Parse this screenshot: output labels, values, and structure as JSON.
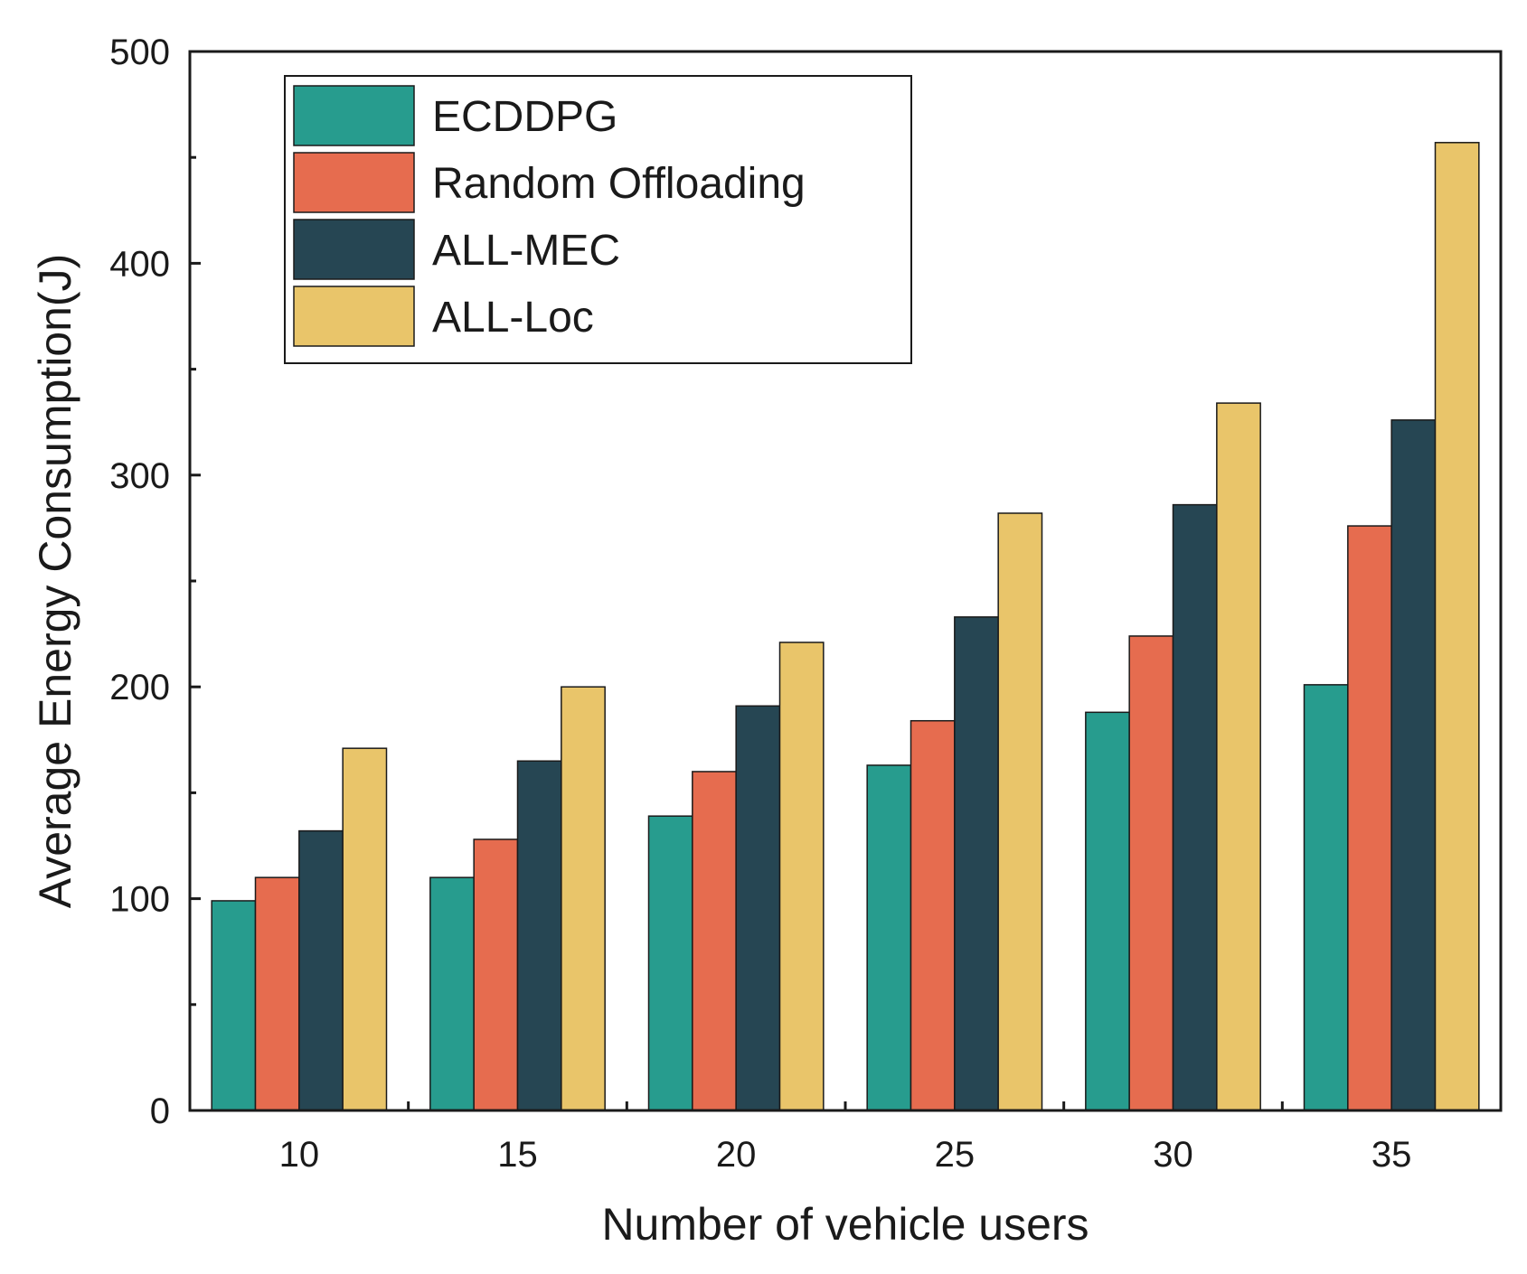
{
  "chart_data": {
    "type": "bar",
    "title": "",
    "xlabel": "Number of vehicle users",
    "ylabel": "Average Energy Consumption(J)",
    "categories": [
      "10",
      "15",
      "20",
      "25",
      "30",
      "35"
    ],
    "ylim": [
      0,
      500
    ],
    "yticks": [
      0,
      100,
      200,
      300,
      400,
      500
    ],
    "grid": false,
    "legend_position": "top-left",
    "series": [
      {
        "name": "ECDDPG",
        "color": "#279c8e",
        "values": [
          99,
          110,
          139,
          163,
          188,
          201
        ]
      },
      {
        "name": "Random Offloading",
        "color": "#e66c4f",
        "values": [
          110,
          128,
          160,
          184,
          224,
          276
        ]
      },
      {
        "name": "ALL-MEC",
        "color": "#264653",
        "values": [
          132,
          165,
          191,
          233,
          286,
          326
        ]
      },
      {
        "name": "ALL-Loc",
        "color": "#e9c56a",
        "values": [
          171,
          200,
          221,
          282,
          334,
          457
        ]
      }
    ]
  }
}
